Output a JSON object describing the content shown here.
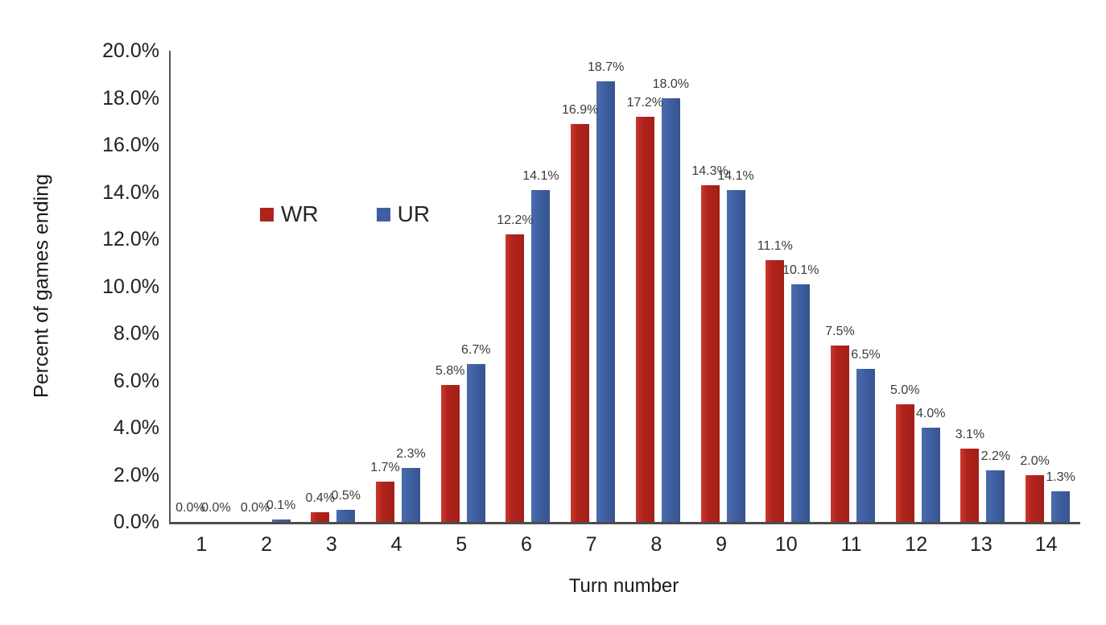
{
  "chart_data": {
    "type": "bar",
    "title": "",
    "xlabel": "Turn number",
    "ylabel": "Percent of games ending",
    "categories": [
      "1",
      "2",
      "3",
      "4",
      "5",
      "6",
      "7",
      "8",
      "9",
      "10",
      "11",
      "12",
      "13",
      "14"
    ],
    "series": [
      {
        "name": "WR",
        "color": "#b0231d",
        "values": [
          0.0,
          0.0,
          0.4,
          1.7,
          5.8,
          12.2,
          16.9,
          17.2,
          14.3,
          11.1,
          7.5,
          5.0,
          3.1,
          2.0
        ]
      },
      {
        "name": "UR",
        "color": "#3e5fa1",
        "values": [
          0.0,
          0.1,
          0.5,
          2.3,
          6.7,
          14.1,
          18.7,
          18.0,
          14.1,
          10.1,
          6.5,
          4.0,
          2.2,
          1.3
        ]
      }
    ],
    "value_label_suffix": "%",
    "ylim": [
      0,
      20
    ],
    "yticks": [
      "0.0%",
      "2.0%",
      "4.0%",
      "6.0%",
      "8.0%",
      "10.0%",
      "12.0%",
      "14.0%",
      "16.0%",
      "18.0%",
      "20.0%"
    ],
    "grid": false,
    "legend_position": "inside-upper-left",
    "axis_color": "#595959"
  }
}
